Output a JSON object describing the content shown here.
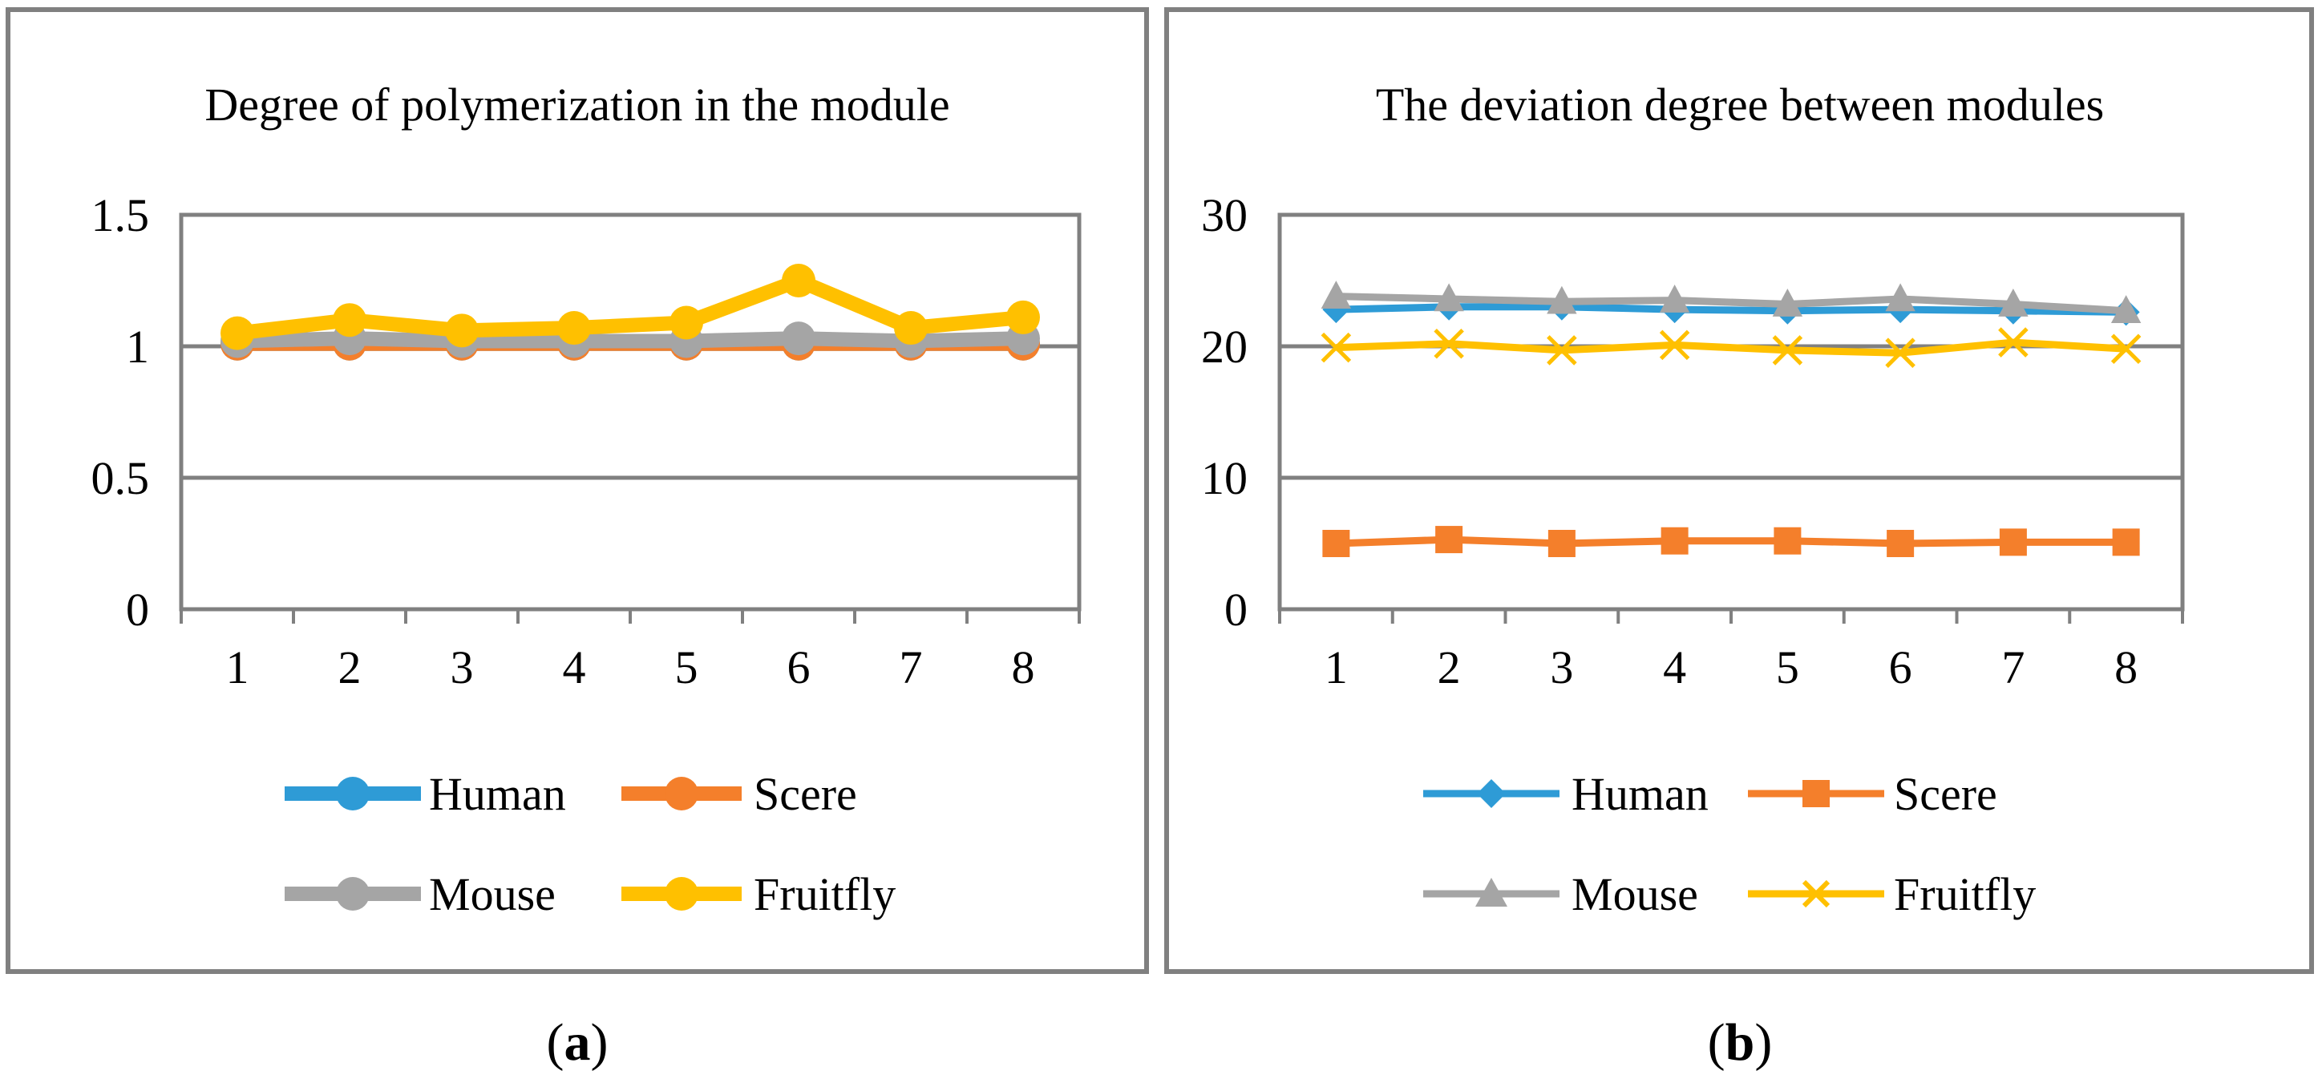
{
  "panels": [
    {
      "id": "a",
      "caption": "a",
      "chart_data": {
        "type": "line",
        "title": "Degree of polymerization in the module",
        "categories": [
          "1",
          "2",
          "3",
          "4",
          "5",
          "6",
          "7",
          "8"
        ],
        "ylim": [
          0,
          1.5
        ],
        "yticks": [
          0,
          0.5,
          1,
          1.5
        ],
        "ytick_labels": [
          "0",
          "0.5",
          "1",
          "1.5"
        ],
        "grid": true,
        "legend": "bottom",
        "xlabel": "",
        "ylabel": "",
        "series": [
          {
            "name": "Human",
            "color": "#2E9BD6",
            "marker": "circle",
            "values": [
              1.01,
              1.01,
              1.01,
              1.01,
              1.01,
              1.01,
              1.01,
              1.01
            ]
          },
          {
            "name": "Scere",
            "color": "#F47F2B",
            "marker": "circle",
            "values": [
              1.01,
              1.01,
              1.01,
              1.01,
              1.01,
              1.01,
              1.01,
              1.01
            ]
          },
          {
            "name": "Mouse",
            "color": "#A5A5A5",
            "marker": "circle",
            "values": [
              1.02,
              1.03,
              1.02,
              1.02,
              1.02,
              1.03,
              1.02,
              1.03
            ]
          },
          {
            "name": "Fruitfly",
            "color": "#FFC000",
            "marker": "circle",
            "values": [
              1.05,
              1.1,
              1.06,
              1.07,
              1.09,
              1.25,
              1.07,
              1.11
            ]
          }
        ]
      }
    },
    {
      "id": "b",
      "caption": "b",
      "chart_data": {
        "type": "line",
        "title": "The deviation degree between modules",
        "categories": [
          "1",
          "2",
          "3",
          "4",
          "5",
          "6",
          "7",
          "8"
        ],
        "ylim": [
          0,
          30
        ],
        "yticks": [
          0,
          10,
          20,
          30
        ],
        "ytick_labels": [
          "0",
          "10",
          "20",
          "30"
        ],
        "grid": true,
        "legend": "bottom",
        "xlabel": "",
        "ylabel": "",
        "series": [
          {
            "name": "Human",
            "color": "#2E9BD6",
            "marker": "diamond",
            "values": [
              22.8,
              23.0,
              23.0,
              22.8,
              22.7,
              22.8,
              22.7,
              22.6
            ]
          },
          {
            "name": "Scere",
            "color": "#F47F2B",
            "marker": "square",
            "values": [
              5.0,
              5.3,
              5.0,
              5.2,
              5.2,
              5.0,
              5.1,
              5.1
            ]
          },
          {
            "name": "Mouse",
            "color": "#A5A5A5",
            "marker": "triangle",
            "values": [
              23.8,
              23.6,
              23.4,
              23.5,
              23.2,
              23.6,
              23.2,
              22.7
            ]
          },
          {
            "name": "Fruitfly",
            "color": "#FFC000",
            "marker": "x",
            "values": [
              19.9,
              20.2,
              19.7,
              20.1,
              19.7,
              19.5,
              20.3,
              19.8
            ]
          }
        ]
      }
    }
  ]
}
